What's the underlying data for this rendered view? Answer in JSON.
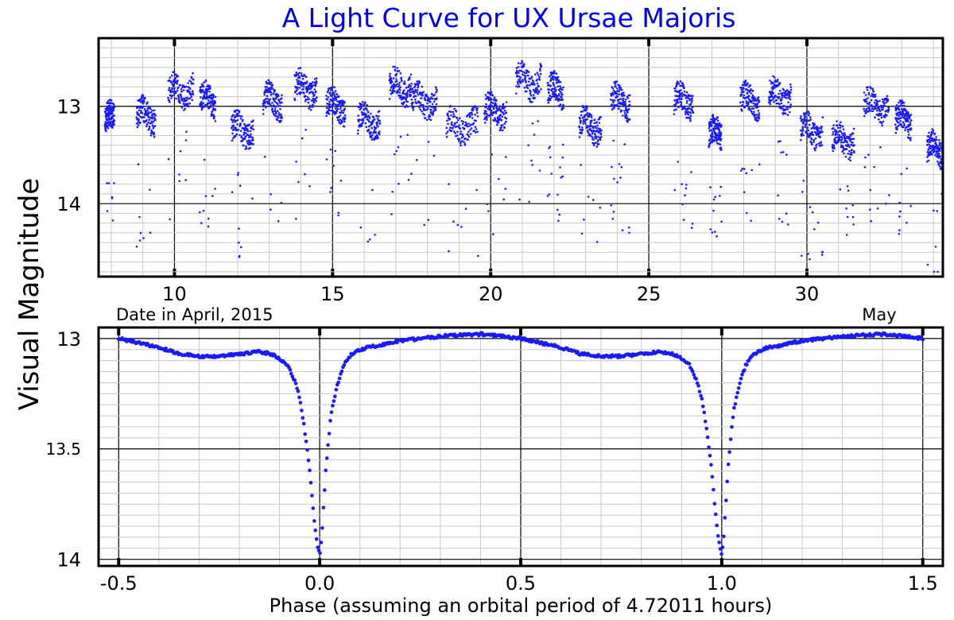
{
  "title": "A Light Curve for UX Ursae Majoris",
  "ylabel": "Visual Magnitude",
  "colors": {
    "points": "#1a1aff",
    "title": "#0000ee",
    "grid": "#c8c8c8",
    "major_grid": "#000000"
  },
  "chart_data": [
    {
      "type": "scatter",
      "panel": "top",
      "xlabel": "Date in April, 2015",
      "x_secondary_label": "May",
      "xlim": [
        7.6,
        34.3
      ],
      "ylim": [
        14.75,
        12.3
      ],
      "y_inverted": true,
      "xticks": [
        10,
        15,
        20,
        25,
        30
      ],
      "xtick_labels": [
        "10",
        "15",
        "20",
        "25",
        "30"
      ],
      "yticks": [
        13,
        14
      ],
      "ytick_labels": [
        "13",
        "14"
      ],
      "grid": true,
      "night_segments": [
        {
          "start": 7.8,
          "end": 8.1,
          "mag": 13.15
        },
        {
          "start": 8.8,
          "end": 9.4,
          "mag": 13.1
        },
        {
          "start": 9.8,
          "end": 10.6,
          "mag": 12.85
        },
        {
          "start": 10.8,
          "end": 11.3,
          "mag": 12.95
        },
        {
          "start": 11.8,
          "end": 12.5,
          "mag": 13.25
        },
        {
          "start": 12.8,
          "end": 13.4,
          "mag": 12.95
        },
        {
          "start": 13.8,
          "end": 14.5,
          "mag": 12.82
        },
        {
          "start": 14.8,
          "end": 15.4,
          "mag": 13.0
        },
        {
          "start": 15.8,
          "end": 16.5,
          "mag": 13.15
        },
        {
          "start": 16.8,
          "end": 17.5,
          "mag": 12.8
        },
        {
          "start": 17.5,
          "end": 18.3,
          "mag": 12.95
        },
        {
          "start": 18.6,
          "end": 19.6,
          "mag": 13.2
        },
        {
          "start": 19.8,
          "end": 20.5,
          "mag": 13.05
        },
        {
          "start": 20.8,
          "end": 21.6,
          "mag": 12.75
        },
        {
          "start": 21.8,
          "end": 22.3,
          "mag": 12.85
        },
        {
          "start": 22.8,
          "end": 23.5,
          "mag": 13.2
        },
        {
          "start": 23.8,
          "end": 24.4,
          "mag": 12.95
        },
        {
          "start": 25.8,
          "end": 26.4,
          "mag": 12.95
        },
        {
          "start": 26.9,
          "end": 27.3,
          "mag": 13.3
        },
        {
          "start": 27.9,
          "end": 28.5,
          "mag": 12.95
        },
        {
          "start": 28.8,
          "end": 29.5,
          "mag": 12.9
        },
        {
          "start": 29.8,
          "end": 30.5,
          "mag": 13.25
        },
        {
          "start": 30.8,
          "end": 31.5,
          "mag": 13.35
        },
        {
          "start": 31.8,
          "end": 32.6,
          "mag": 13.0
        },
        {
          "start": 32.8,
          "end": 33.3,
          "mag": 13.15
        },
        {
          "start": 33.8,
          "end": 34.3,
          "mag": 13.45
        }
      ]
    },
    {
      "type": "scatter",
      "panel": "bottom",
      "xlabel": "Phase (assuming an orbital period of 4.72011 hours)",
      "xlim": [
        -0.55,
        1.55
      ],
      "ylim": [
        14.03,
        12.95
      ],
      "y_inverted": true,
      "xticks": [
        -0.5,
        0.0,
        0.5,
        1.0,
        1.5
      ],
      "xtick_labels": [
        "-0.5",
        "0.0",
        "0.5",
        "1.0",
        "1.5"
      ],
      "yticks": [
        13,
        13.5,
        14
      ],
      "ytick_labels": [
        "13",
        "13.5",
        "14"
      ],
      "grid": true,
      "phase_curve": {
        "phase": [
          0.0,
          0.005,
          0.01,
          0.015,
          0.02,
          0.025,
          0.03,
          0.04,
          0.05,
          0.06,
          0.07,
          0.08,
          0.09,
          0.1,
          0.12,
          0.15,
          0.2,
          0.25,
          0.3,
          0.35,
          0.4,
          0.45,
          0.5,
          0.55,
          0.6,
          0.65,
          0.7,
          0.75,
          0.8,
          0.85,
          0.88,
          0.9,
          0.92,
          0.94,
          0.95,
          0.96,
          0.97,
          0.975,
          0.98,
          0.985,
          0.99,
          0.995,
          1.0
        ],
        "mag": [
          13.98,
          13.9,
          13.75,
          13.6,
          13.5,
          13.4,
          13.32,
          13.24,
          13.17,
          13.12,
          13.09,
          13.07,
          13.06,
          13.05,
          13.04,
          13.03,
          13.01,
          13.0,
          12.99,
          12.985,
          12.98,
          12.99,
          13.0,
          13.02,
          13.04,
          13.07,
          13.08,
          13.08,
          13.07,
          13.06,
          13.07,
          13.09,
          13.12,
          13.2,
          13.27,
          13.38,
          13.52,
          13.6,
          13.7,
          13.8,
          13.88,
          13.94,
          13.98
        ]
      }
    }
  ]
}
